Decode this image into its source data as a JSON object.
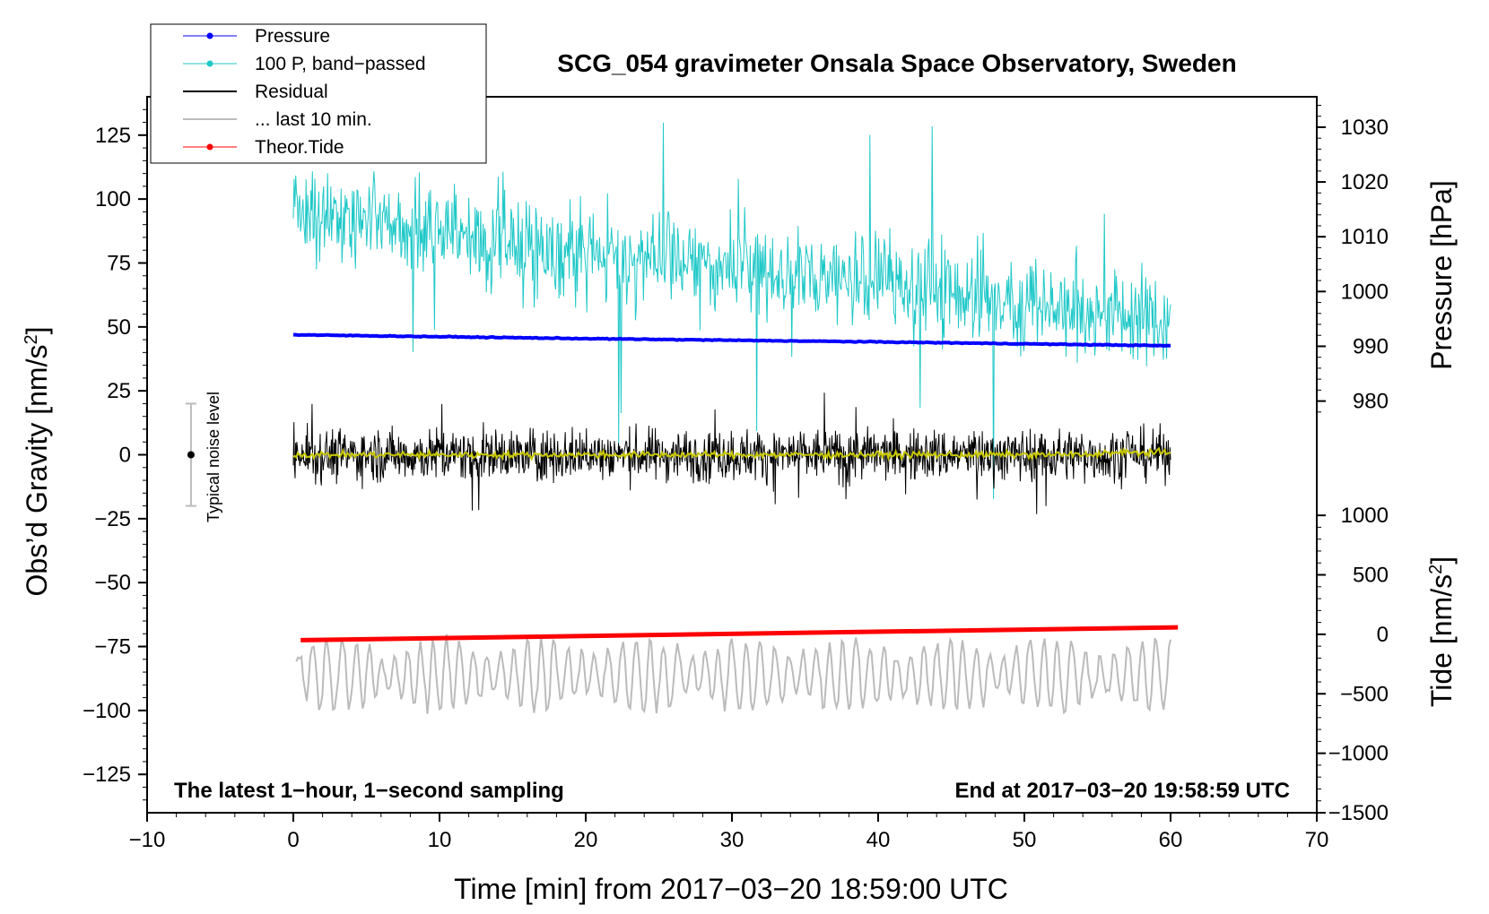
{
  "chart_data": {
    "type": "line",
    "title": "SCG_054 gravimeter Onsala Space Observatory, Sweden",
    "xlabel": "Time [min] from 2017−03−20 18:59:00 UTC",
    "ylabel_left": "Obs’d Gravity [nm/s",
    "ylabel_left_sup": "2",
    "ylabel_left_close": "]",
    "ylabel_right_pressure": "Pressure [hPa]",
    "ylabel_right_tide": "Tide [nm/s",
    "ylabel_right_tide_sup": "2",
    "ylabel_right_tide_close": "]",
    "xlim": [
      -10,
      70
    ],
    "ylim_left": [
      -140,
      140
    ],
    "x_ticks": [
      "−10",
      "0",
      "10",
      "20",
      "30",
      "40",
      "50",
      "60",
      "70"
    ],
    "x_tick_values": [
      -10,
      0,
      10,
      20,
      30,
      40,
      50,
      60,
      70
    ],
    "y_left_ticks": [
      "125",
      "100",
      "75",
      "50",
      "25",
      "0",
      "−25",
      "−50",
      "−75",
      "−100",
      "−125"
    ],
    "y_left_tick_values": [
      125,
      100,
      75,
      50,
      25,
      0,
      -25,
      -50,
      -75,
      -100,
      -125
    ],
    "pressure_axis": {
      "ticks": [
        "1030",
        "1020",
        "1010",
        "1000",
        "990",
        "980"
      ],
      "tick_values": [
        1030,
        1020,
        1010,
        1000,
        990,
        980
      ],
      "map": {
        "p1": 1030,
        "g1": 128.1,
        "p2": 980,
        "g2": 21.0
      }
    },
    "tide_axis": {
      "ticks": [
        "1000",
        "500",
        "0",
        "−500",
        "−1000",
        "−1500"
      ],
      "tick_values": [
        1000,
        500,
        0,
        -500,
        -1000,
        -1500
      ],
      "map": {
        "t1": 1000,
        "g1": -23.7,
        "t2": -1500,
        "g2": -140
      }
    },
    "legend": {
      "location": "top-left",
      "entries": [
        {
          "label": "Pressure",
          "color": "#0000ff",
          "marker": true
        },
        {
          "label": "100 P, band−passed",
          "color": "#20c8c8",
          "marker": true
        },
        {
          "label": "Residual",
          "color": "#000000",
          "marker": false
        },
        {
          "label": "... last 10 min.",
          "color": "#bbbbbb",
          "marker": false
        },
        {
          "label": "Theor.Tide",
          "color": "#ff0000",
          "marker": true
        }
      ]
    },
    "noise_level": {
      "label": "Typical noise level",
      "x": -7,
      "center": 0,
      "half_range": 20
    },
    "annotations": {
      "left": "The latest 1−hour, 1−second sampling",
      "right": "End at 2017−03−20 19:58:59 UTC"
    },
    "series": [
      {
        "name": "Pressure",
        "color": "#0000ff",
        "axis": "pressure",
        "x": [
          0,
          20,
          40,
          60
        ],
        "values": [
          992.1,
          991.4,
          990.8,
          990.1
        ]
      },
      {
        "name": "100 P, band-passed",
        "color": "#20c8c8",
        "axis": "gravity",
        "x_range": [
          0,
          60
        ],
        "baseline": [
          {
            "x": 0,
            "y": 95
          },
          {
            "x": 20,
            "y": 78
          },
          {
            "x": 40,
            "y": 68
          },
          {
            "x": 60,
            "y": 52
          }
        ],
        "amplitude": 18
      },
      {
        "name": "Residual",
        "color": "#000000",
        "axis": "gravity",
        "x_range": [
          0,
          60
        ],
        "center": 0,
        "amplitude": 10
      },
      {
        "name": "Residual smoothed",
        "color": "#c8c800",
        "axis": "gravity",
        "x_range": [
          0,
          60
        ],
        "center": 0,
        "amplitude": 1.2
      },
      {
        "name": "Theor.Tide",
        "color": "#ff0000",
        "axis": "gravity",
        "x": [
          0.5,
          60.5
        ],
        "values": [
          -72.5,
          -67.5
        ]
      },
      {
        "name": "... last 10 min.",
        "color": "#bbbbbb",
        "axis": "gravity",
        "x_range": [
          0.2,
          60
        ],
        "center": -86,
        "amplitude": 14
      }
    ]
  }
}
